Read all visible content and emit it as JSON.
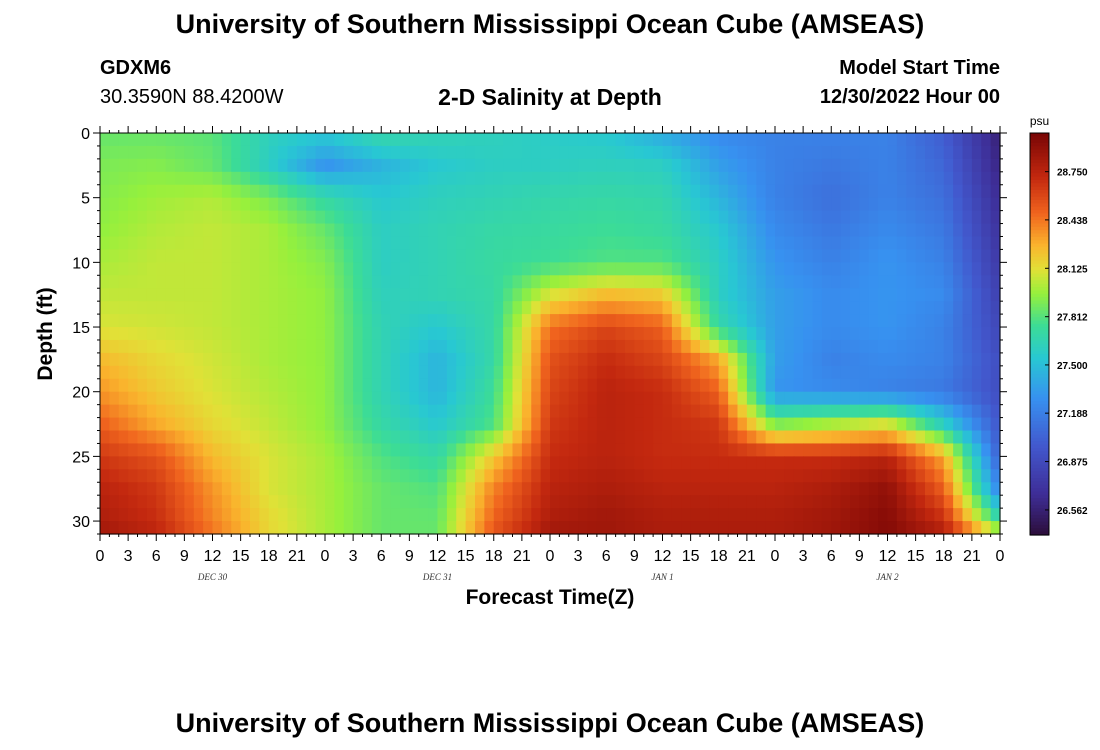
{
  "header": {
    "title": "University of Southern Mississippi Ocean Cube (AMSEAS)",
    "station": "GDXM6",
    "coordinates": "30.3590N  88.4200W",
    "subtitle": "2-D Salinity at Depth",
    "start_label": "Model Start Time",
    "start_value": "12/30/2022 Hour 00"
  },
  "footer": {
    "title": "University of Southern Mississippi Ocean Cube (AMSEAS)"
  },
  "chart_data": {
    "type": "heatmap",
    "title": "2-D Salinity at Depth",
    "xlabel": "Forecast Time(Z)",
    "ylabel": "Depth (ft)",
    "xlim_hours": [
      0,
      96
    ],
    "ylim": [
      0,
      31
    ],
    "y_inverted": true,
    "y_ticks": [
      0,
      5,
      10,
      15,
      20,
      25,
      30
    ],
    "x_tick_hours": [
      0,
      3,
      6,
      9,
      12,
      15,
      18,
      21,
      24,
      27,
      30,
      33,
      36,
      39,
      42,
      45,
      48,
      51,
      54,
      57,
      60,
      63,
      66,
      69,
      72,
      75,
      78,
      81,
      84,
      87,
      90,
      93,
      96
    ],
    "x_tick_labels": [
      "0",
      "3",
      "6",
      "9",
      "12",
      "15",
      "18",
      "21",
      "0",
      "3",
      "6",
      "9",
      "12",
      "15",
      "18",
      "21",
      "0",
      "3",
      "6",
      "9",
      "12",
      "15",
      "18",
      "21",
      "0",
      "3",
      "6",
      "9",
      "12",
      "15",
      "18",
      "21",
      "0"
    ],
    "day_labels": [
      {
        "hour": 12,
        "label": "DEC 30"
      },
      {
        "hour": 36,
        "label": "DEC 31"
      },
      {
        "hour": 60,
        "label": "JAN 1"
      },
      {
        "hour": 84,
        "label": "JAN 2"
      }
    ],
    "colorbar": {
      "unit": "psu",
      "min": 26.4,
      "max": 29.0,
      "ticks": [
        26.562,
        26.875,
        27.188,
        27.5,
        27.812,
        28.125,
        28.438,
        28.75
      ],
      "tick_labels": [
        "26.562",
        "26.875",
        "27.188",
        "27.500",
        "27.812",
        "28.125",
        "28.438",
        "28.750"
      ]
    },
    "field_description_times_hours": [
      0,
      6,
      12,
      18,
      24,
      30,
      36,
      42,
      48,
      54,
      60,
      66,
      72,
      78,
      84,
      90,
      96
    ],
    "field_description_depths_ft": [
      0,
      2.5,
      5,
      7.5,
      10,
      12.5,
      15,
      17.5,
      20,
      22.5,
      25,
      27.5,
      30,
      31
    ],
    "values": [
      [
        27.85,
        27.85,
        27.82,
        27.62,
        27.55,
        27.7,
        27.65,
        27.62,
        27.58,
        27.55,
        27.4,
        27.25,
        27.2,
        27.2,
        27.2,
        27.0,
        26.56
      ],
      [
        27.9,
        27.92,
        27.85,
        27.6,
        27.3,
        27.45,
        27.55,
        27.6,
        27.6,
        27.62,
        27.6,
        27.35,
        27.2,
        27.15,
        27.2,
        27.05,
        26.6
      ],
      [
        27.92,
        27.98,
        28.02,
        27.9,
        27.7,
        27.55,
        27.62,
        27.65,
        27.68,
        27.7,
        27.68,
        27.45,
        27.2,
        27.1,
        27.2,
        27.1,
        26.65
      ],
      [
        27.95,
        28.02,
        28.05,
        28.0,
        27.85,
        27.6,
        27.65,
        27.7,
        27.72,
        27.75,
        27.72,
        27.55,
        27.25,
        27.15,
        27.25,
        27.15,
        26.7
      ],
      [
        28.0,
        28.05,
        28.05,
        28.0,
        27.92,
        27.6,
        27.65,
        27.72,
        27.75,
        27.8,
        27.8,
        27.6,
        27.3,
        27.2,
        27.3,
        27.2,
        26.75
      ],
      [
        28.05,
        28.05,
        28.05,
        28.0,
        27.95,
        27.62,
        27.65,
        27.7,
        28.1,
        28.25,
        28.2,
        27.6,
        27.35,
        27.25,
        27.3,
        27.25,
        26.8
      ],
      [
        28.1,
        28.08,
        28.05,
        28.0,
        27.95,
        27.65,
        27.55,
        27.7,
        28.45,
        28.6,
        28.5,
        27.7,
        27.35,
        27.25,
        27.3,
        27.2,
        26.85
      ],
      [
        28.25,
        28.15,
        28.08,
        28.0,
        27.95,
        27.65,
        27.45,
        27.7,
        28.55,
        28.7,
        28.6,
        28.3,
        27.35,
        27.2,
        27.25,
        27.2,
        26.9
      ],
      [
        28.35,
        28.2,
        28.1,
        28.02,
        27.95,
        27.65,
        27.45,
        27.75,
        28.6,
        28.75,
        28.7,
        28.5,
        27.3,
        27.25,
        27.2,
        27.15,
        26.9
      ],
      [
        28.5,
        28.3,
        28.15,
        28.05,
        27.95,
        27.7,
        27.55,
        27.8,
        28.65,
        28.75,
        28.7,
        28.65,
        27.9,
        28.0,
        28.1,
        27.6,
        26.95
      ],
      [
        28.65,
        28.55,
        28.25,
        28.1,
        28.0,
        27.8,
        27.7,
        28.2,
        28.7,
        28.75,
        28.7,
        28.7,
        28.7,
        28.7,
        28.75,
        28.3,
        27.0
      ],
      [
        28.75,
        28.65,
        28.35,
        28.1,
        28.0,
        27.85,
        27.8,
        28.4,
        28.75,
        28.8,
        28.75,
        28.75,
        28.75,
        28.8,
        28.9,
        28.5,
        27.2
      ],
      [
        28.8,
        28.7,
        28.4,
        28.15,
        28.0,
        27.85,
        27.85,
        28.5,
        28.8,
        28.85,
        28.8,
        28.8,
        28.8,
        28.85,
        28.95,
        28.7,
        27.7
      ],
      [
        28.85,
        28.75,
        28.45,
        28.15,
        28.0,
        27.85,
        27.85,
        28.55,
        28.85,
        28.85,
        28.8,
        28.8,
        28.8,
        28.85,
        28.95,
        28.8,
        28.1
      ]
    ]
  }
}
